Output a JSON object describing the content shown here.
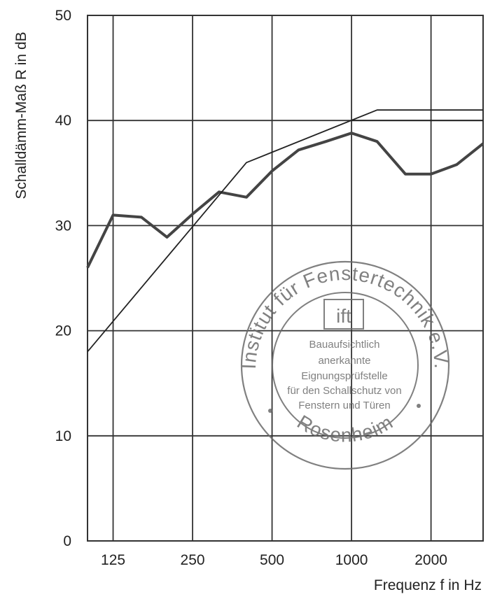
{
  "chart_data": {
    "type": "line",
    "xlabel": "Frequenz f in Hz",
    "ylabel": "Schalldämm-Maß R in dB",
    "x_scale": "log",
    "xlim": [
      100,
      3150
    ],
    "ylim": [
      0,
      50
    ],
    "x_ticks": [
      125,
      250,
      500,
      1000,
      2000
    ],
    "x_tick_labels": [
      "125",
      "250",
      "500",
      "1000",
      "2000"
    ],
    "y_ticks": [
      0,
      10,
      20,
      30,
      40,
      50
    ],
    "y_tick_labels": [
      "0",
      "10",
      "20",
      "30",
      "40",
      "50"
    ],
    "grid": true,
    "legend": "none",
    "series": [
      {
        "role": "measured",
        "style": "thick",
        "x": [
          100,
          125,
          160,
          200,
          250,
          315,
          400,
          500,
          630,
          800,
          1000,
          1250,
          1600,
          2000,
          2500,
          3150
        ],
        "y": [
          26,
          31,
          30.8,
          28.9,
          31.1,
          33.2,
          32.7,
          35.2,
          37.2,
          38,
          38.8,
          38,
          34.9,
          34.9,
          35.8,
          37.8
        ]
      },
      {
        "role": "reference",
        "style": "thin",
        "x": [
          100,
          400,
          1250,
          3150
        ],
        "y": [
          18,
          36,
          41,
          41
        ]
      },
      {
        "role": "reference",
        "style": "thin",
        "x": [
          1000,
          3150
        ],
        "y": [
          40,
          40
        ]
      }
    ]
  },
  "stamp": {
    "ring_top": "Institut für Fenstertechnik e.V.",
    "ring_bottom": "Rosenheim",
    "logo": "ift",
    "lines": [
      "Bauaufsichtlich",
      "anerkannte",
      "Eignungsprüfstelle",
      "für den Schallschutz von",
      "Fenstern und Türen"
    ]
  }
}
